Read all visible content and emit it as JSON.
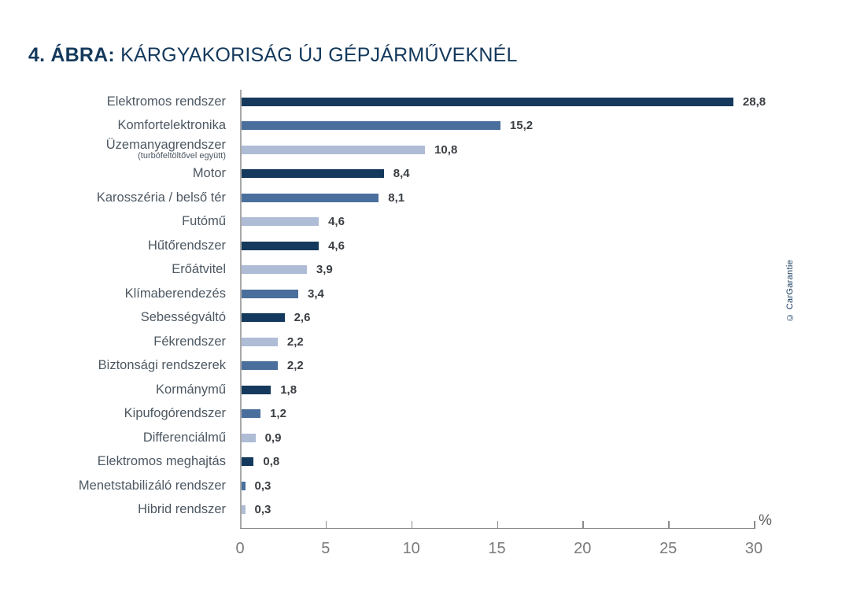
{
  "title": {
    "prefix": "4. ÁBRA:",
    "text": "KÁRGYAKORISÁG ÚJ GÉPJÁRMŰVEKNÉL"
  },
  "copyright": "© CarGarantie",
  "colors": {
    "dark": "#14395c",
    "medium": "#4a6f9d",
    "light": "#aebcd5",
    "title": "#14395c",
    "category_label": "#4d5862",
    "value_label": "#3a3e43",
    "axis": "#8c8c8c",
    "tick_label": "#7a7a7a"
  },
  "axis": {
    "ticks": [
      "0",
      "5",
      "10",
      "15",
      "20",
      "25",
      "30"
    ],
    "unit": "%"
  },
  "chart_data": {
    "type": "bar",
    "orientation": "horizontal",
    "title": "4. ÁBRA: KÁRGYAKORISÁG ÚJ GÉPJÁRMŰVEKNÉL",
    "xlabel": "%",
    "xlim": [
      0,
      30
    ],
    "x_ticks": [
      0,
      5,
      10,
      15,
      20,
      25,
      30
    ],
    "grid": false,
    "legend": false,
    "categories": [
      "Elektromos rendszer",
      "Komfortelektronika",
      "Üzemanyagrendszer (turbófeltöltővel együtt)",
      "Motor",
      "Karosszéria / belső tér",
      "Futómű",
      "Hűtőrendszer",
      "Erőátvitel",
      "Klímaberendezés",
      "Sebességváltó",
      "Fékrendszer",
      "Biztonsági rendszerek",
      "Kormánymű",
      "Kipufogórendszer",
      "Differenciálmű",
      "Elektromos meghajtás",
      "Menetstabilizáló rendszer",
      "Hibrid rendszer"
    ],
    "values": [
      28.8,
      15.2,
      10.8,
      8.4,
      8.1,
      4.6,
      4.6,
      3.9,
      3.4,
      2.6,
      2.2,
      2.2,
      1.8,
      1.2,
      0.9,
      0.8,
      0.3,
      0.3
    ],
    "items": [
      {
        "label": "Elektromos rendszer",
        "sublabel": "",
        "value": 28.8,
        "value_label": "28,8",
        "shade": "dark"
      },
      {
        "label": "Komfortelektronika",
        "sublabel": "",
        "value": 15.2,
        "value_label": "15,2",
        "shade": "medium"
      },
      {
        "label": "Üzemanyagrendszer",
        "sublabel": "(turbófeltöltővel együtt)",
        "value": 10.8,
        "value_label": "10,8",
        "shade": "light"
      },
      {
        "label": "Motor",
        "sublabel": "",
        "value": 8.4,
        "value_label": "8,4",
        "shade": "dark"
      },
      {
        "label": "Karosszéria / belső tér",
        "sublabel": "",
        "value": 8.1,
        "value_label": "8,1",
        "shade": "medium"
      },
      {
        "label": "Futómű",
        "sublabel": "",
        "value": 4.6,
        "value_label": "4,6",
        "shade": "light"
      },
      {
        "label": "Hűtőrendszer",
        "sublabel": "",
        "value": 4.6,
        "value_label": "4,6",
        "shade": "dark"
      },
      {
        "label": "Erőátvitel",
        "sublabel": "",
        "value": 3.9,
        "value_label": "3,9",
        "shade": "light"
      },
      {
        "label": "Klímaberendezés",
        "sublabel": "",
        "value": 3.4,
        "value_label": "3,4",
        "shade": "medium"
      },
      {
        "label": "Sebességváltó",
        "sublabel": "",
        "value": 2.6,
        "value_label": "2,6",
        "shade": "dark"
      },
      {
        "label": "Fékrendszer",
        "sublabel": "",
        "value": 2.2,
        "value_label": "2,2",
        "shade": "light"
      },
      {
        "label": "Biztonsági rendszerek",
        "sublabel": "",
        "value": 2.2,
        "value_label": "2,2",
        "shade": "medium"
      },
      {
        "label": "Kormánymű",
        "sublabel": "",
        "value": 1.8,
        "value_label": "1,8",
        "shade": "dark"
      },
      {
        "label": "Kipufogórendszer",
        "sublabel": "",
        "value": 1.2,
        "value_label": "1,2",
        "shade": "medium"
      },
      {
        "label": "Differenciálmű",
        "sublabel": "",
        "value": 0.9,
        "value_label": "0,9",
        "shade": "light"
      },
      {
        "label": "Elektromos meghajtás",
        "sublabel": "",
        "value": 0.8,
        "value_label": "0,8",
        "shade": "dark"
      },
      {
        "label": "Menetstabilizáló rendszer",
        "sublabel": "",
        "value": 0.3,
        "value_label": "0,3",
        "shade": "medium"
      },
      {
        "label": "Hibrid rendszer",
        "sublabel": "",
        "value": 0.3,
        "value_label": "0,3",
        "shade": "light"
      }
    ]
  }
}
